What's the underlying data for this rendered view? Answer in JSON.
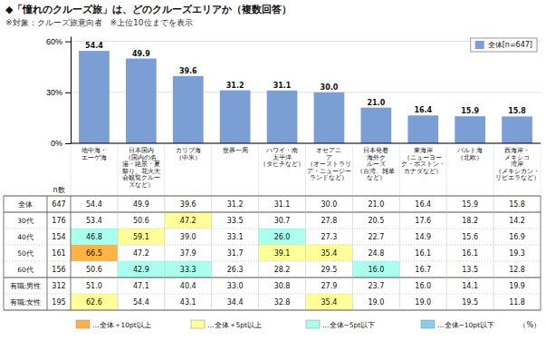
{
  "chart_data": {
    "type": "bar",
    "title": "◆「憧れのクルーズ旅」は、どのクルーズエリアか（複数回答）",
    "subtitle": "※対象：クルーズ旅意向者　※上位10位までを表示",
    "categories": [
      "地中海・\nエーゲ海",
      "日本国内\n（国内の名\n湯・絶景・夏\n祭り、花火大\n会観覧クルー\nズなど）",
      "カリブ海\n（中米）",
      "世界一周",
      "ハワイ・南\n太平洋\n（タヒチなど）",
      "オセアニ\nア\n（オーストラリ\nア・ニュージー\nランドなど）",
      "日本発着\n海外ク\nルーズ\n（台湾、雑草\nなど）",
      "東海岸\n（ニューヨー\nク・ボストン・\nカナダなど）",
      "バルト海\n（北欧）",
      "西海岸・\nメキシコ\n湾岸\n（メキシカン・\nリビエラなど）"
    ],
    "series": [
      {
        "name": "全体[n=647]",
        "color": "#7B9FD4",
        "values": [
          54.4,
          49.9,
          39.6,
          31.2,
          31.1,
          30.0,
          21.0,
          16.4,
          15.9,
          15.8
        ],
        "value_labels": [
          "54.4",
          "49.9",
          "39.6",
          "31.2",
          "31.1",
          "30.0",
          "21.0",
          "16.4",
          "15.9",
          "15.8"
        ]
      }
    ],
    "ylim": [
      0,
      63
    ],
    "yticks": [
      {
        "value": 0,
        "label": "0%"
      },
      {
        "value": 30,
        "label": "30%"
      },
      {
        "value": 60,
        "label": "60%"
      }
    ],
    "grid": true,
    "legend": "upper right",
    "data_labels": true,
    "table": {
      "n_label": "n数",
      "unit_label": "（%）",
      "rows": [
        {
          "label": "全体",
          "n": 647,
          "values": [
            54.4,
            49.9,
            39.6,
            31.2,
            31.1,
            30.0,
            21.0,
            16.4,
            15.9,
            15.8
          ],
          "value_labels": [
            "54.4",
            "49.9",
            "39.6",
            "31.2",
            "31.1",
            "30.0",
            "21.0",
            "16.4",
            "15.9",
            "15.8"
          ],
          "colors": [
            "#ffffff",
            "#ffffff",
            "#ffffff",
            "#ffffff",
            "#ffffff",
            "#ffffff",
            "#ffffff",
            "#ffffff",
            "#ffffff",
            "#ffffff"
          ]
        },
        {
          "label": "30代",
          "n": 176,
          "values": [
            53.4,
            50.6,
            47.2,
            33.5,
            30.7,
            27.8,
            20.5,
            17.6,
            18.2,
            14.2
          ],
          "value_labels": [
            "53.4",
            "50.6",
            "47.2",
            "33.5",
            "30.7",
            "27.8",
            "20.5",
            "17.6",
            "18.2",
            "14.2"
          ],
          "colors": [
            "#ffffff",
            "#ffffff",
            "#FFFF99",
            "#ffffff",
            "#ffffff",
            "#ffffff",
            "#ffffff",
            "#ffffff",
            "#ffffff",
            "#ffffff"
          ]
        },
        {
          "label": "40代",
          "n": 154,
          "values": [
            46.8,
            59.1,
            39.0,
            33.1,
            26.0,
            27.3,
            22.7,
            14.9,
            15.6,
            16.9
          ],
          "value_labels": [
            "46.8",
            "59.1",
            "39.0",
            "33.1",
            "26.0",
            "27.3",
            "22.7",
            "14.9",
            "15.6",
            "16.9"
          ],
          "colors": [
            "#AAFFEE",
            "#FFFF99",
            "#ffffff",
            "#ffffff",
            "#AAFFEE",
            "#ffffff",
            "#ffffff",
            "#ffffff",
            "#ffffff",
            "#ffffff"
          ]
        },
        {
          "label": "50代",
          "n": 161,
          "values": [
            66.5,
            47.2,
            37.9,
            31.7,
            39.1,
            35.4,
            24.8,
            16.1,
            16.1,
            19.3
          ],
          "value_labels": [
            "66.5",
            "47.2",
            "37.9",
            "31.7",
            "39.1",
            "35.4",
            "24.8",
            "16.1",
            "16.1",
            "19.3"
          ],
          "colors": [
            "#FFB347",
            "#ffffff",
            "#ffffff",
            "#ffffff",
            "#FFFF99",
            "#FFFF99",
            "#ffffff",
            "#ffffff",
            "#ffffff",
            "#ffffff"
          ]
        },
        {
          "label": "60代",
          "n": 156,
          "values": [
            50.6,
            42.9,
            33.3,
            26.3,
            28.2,
            29.5,
            16.0,
            16.7,
            13.5,
            12.8
          ],
          "value_labels": [
            "50.6",
            "42.9",
            "33.3",
            "26.3",
            "28.2",
            "29.5",
            "16.0",
            "16.7",
            "13.5",
            "12.8"
          ],
          "colors": [
            "#ffffff",
            "#AAFFEE",
            "#AAFFEE",
            "#ffffff",
            "#ffffff",
            "#ffffff",
            "#AAFFEE",
            "#ffffff",
            "#ffffff",
            "#ffffff"
          ]
        },
        {
          "label": "有職:男性",
          "n": 312,
          "values": [
            51.0,
            47.1,
            40.4,
            33.0,
            30.8,
            27.9,
            23.7,
            16.0,
            14.1,
            19.9
          ],
          "value_labels": [
            "51.0",
            "47.1",
            "40.4",
            "33.0",
            "30.8",
            "27.9",
            "23.7",
            "16.0",
            "14.1",
            "19.9"
          ],
          "colors": [
            "#ffffff",
            "#ffffff",
            "#ffffff",
            "#ffffff",
            "#ffffff",
            "#ffffff",
            "#ffffff",
            "#ffffff",
            "#ffffff",
            "#ffffff"
          ]
        },
        {
          "label": "有職:女性",
          "n": 195,
          "values": [
            62.6,
            54.4,
            43.1,
            34.4,
            32.8,
            35.4,
            19.0,
            19.0,
            19.5,
            11.8
          ],
          "value_labels": [
            "62.6",
            "54.4",
            "43.1",
            "34.4",
            "32.8",
            "35.4",
            "19.0",
            "19.0",
            "19.5",
            "11.8"
          ],
          "colors": [
            "#FFFF99",
            "#ffffff",
            "#ffffff",
            "#ffffff",
            "#ffffff",
            "#FFFF99",
            "#ffffff",
            "#ffffff",
            "#ffffff",
            "#ffffff"
          ]
        }
      ],
      "color_key": [
        {
          "label": "…全体＋10pt以上",
          "color": "#FFB347"
        },
        {
          "label": "…全体＋5pt以上",
          "color": "#FFFF99"
        },
        {
          "label": "…全体−5pt以下",
          "color": "#AAFFEE"
        },
        {
          "label": "…全体−10pt以下",
          "color": "#87CEEB"
        }
      ]
    }
  }
}
